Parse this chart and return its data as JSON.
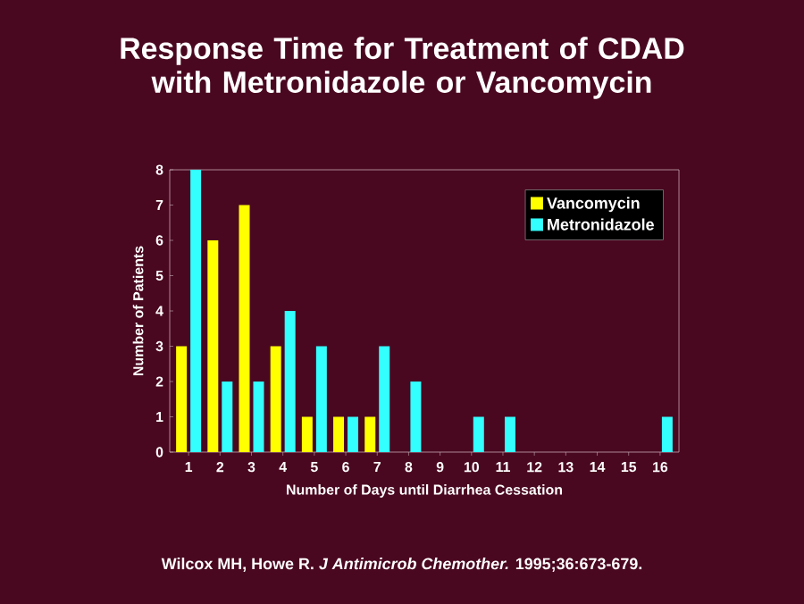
{
  "chart_data": {
    "type": "bar",
    "title": "Response Time for Treatment of CDAD with Metronidazole or Vancomycin",
    "xlabel": "Number of Days until Diarrhea Cessation",
    "ylabel": "Number of Patients",
    "categories": [
      "1",
      "2",
      "3",
      "4",
      "5",
      "6",
      "7",
      "8",
      "9",
      "10",
      "11",
      "12",
      "13",
      "14",
      "15",
      "16"
    ],
    "series": [
      {
        "name": "Vancomycin",
        "color": "#ffff00",
        "values": [
          3,
          6,
          7,
          3,
          1,
          1,
          1,
          0,
          0,
          0,
          0,
          0,
          0,
          0,
          0,
          0
        ]
      },
      {
        "name": "Metronidazole",
        "color": "#33ffff",
        "values": [
          8,
          2,
          2,
          4,
          3,
          1,
          3,
          2,
          0,
          1,
          1,
          0,
          0,
          0,
          0,
          1
        ]
      }
    ],
    "ylim": [
      0,
      8
    ],
    "yticks": [
      0,
      1,
      2,
      3,
      4,
      5,
      6,
      7,
      8
    ],
    "legend": "top right",
    "grid": false,
    "annotations": [
      "Wilcox MH, Howe R. *J Antimicrob Chemother.* 1995;36:673-679."
    ]
  }
}
